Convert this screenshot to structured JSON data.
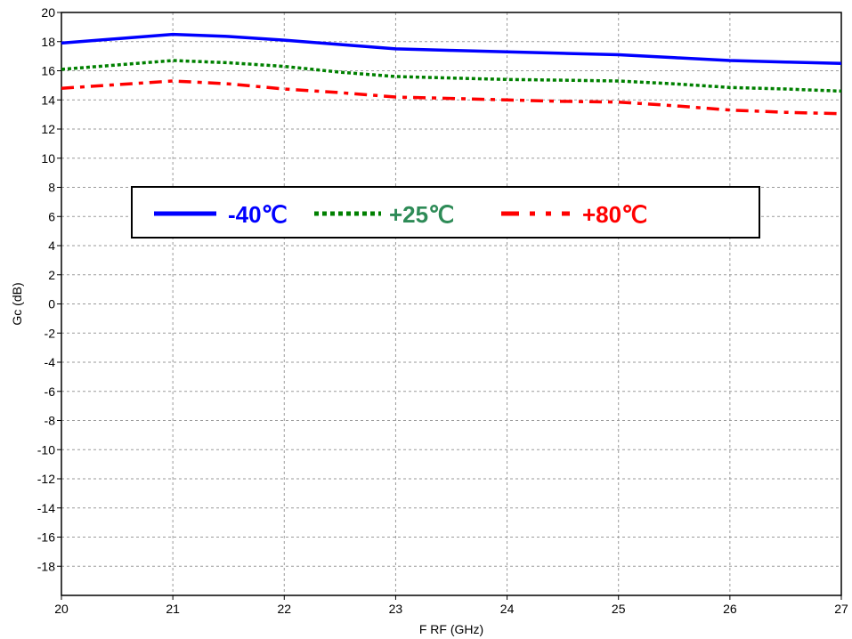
{
  "chart_data": {
    "type": "line",
    "title": "",
    "xlabel": "F RF (GHz)",
    "ylabel": "Gc (dB)",
    "xlim": [
      20,
      27
    ],
    "ylim": [
      -20,
      20
    ],
    "xticks": [
      "20",
      "21",
      "22",
      "23",
      "24",
      "25",
      "26",
      "27"
    ],
    "yticks": [
      "-18",
      "-16",
      "-14",
      "-12",
      "-10",
      "-8",
      "-6",
      "-4",
      "-2",
      "0",
      "2",
      "4",
      "6",
      "8",
      "10",
      "12",
      "14",
      "16",
      "18",
      "20"
    ],
    "grid": true,
    "legend_position": "upper-left",
    "series": [
      {
        "name": "-40℃",
        "color": "#0000ff",
        "style": "solid",
        "x": [
          20,
          20.5,
          21,
          21.5,
          22,
          22.5,
          23,
          23.5,
          24,
          24.5,
          25,
          25.5,
          26,
          26.5,
          27
        ],
        "y": [
          17.9,
          18.2,
          18.5,
          18.35,
          18.1,
          17.8,
          17.5,
          17.4,
          17.3,
          17.2,
          17.1,
          16.9,
          16.7,
          16.6,
          16.5
        ]
      },
      {
        "name": "+25℃",
        "color": "#008000",
        "style": "dotted",
        "x": [
          20,
          20.5,
          21,
          21.5,
          22,
          22.5,
          23,
          23.5,
          24,
          24.5,
          25,
          25.5,
          26,
          26.5,
          27
        ],
        "y": [
          16.1,
          16.4,
          16.7,
          16.55,
          16.3,
          15.9,
          15.6,
          15.5,
          15.4,
          15.35,
          15.3,
          15.1,
          14.85,
          14.75,
          14.6
        ]
      },
      {
        "name": "+80℃",
        "color": "#ff0000",
        "style": "dashdot",
        "x": [
          20,
          20.5,
          21,
          21.5,
          22,
          22.5,
          23,
          23.5,
          24,
          24.5,
          25,
          25.5,
          26,
          26.5,
          27
        ],
        "y": [
          14.8,
          15.05,
          15.3,
          15.1,
          14.75,
          14.5,
          14.2,
          14.1,
          14.0,
          13.9,
          13.85,
          13.6,
          13.3,
          13.15,
          13.05
        ]
      }
    ],
    "legend_label_colors": [
      "#0000ff",
      "#2e8b57",
      "#ff0000"
    ]
  }
}
